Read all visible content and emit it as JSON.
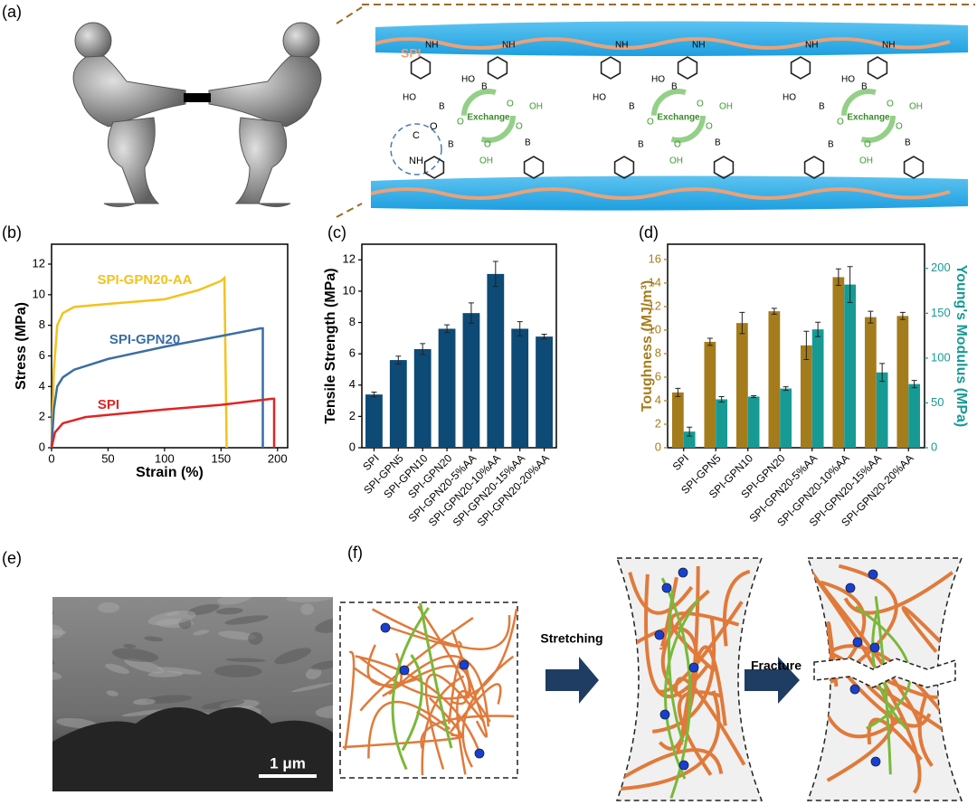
{
  "panels": [
    "(a)",
    "(b)",
    "(c)",
    "(d)",
    "(e)",
    "(f)"
  ],
  "molecule": {
    "polymer_label": "SPI",
    "exchange": "Exchange",
    "atoms": [
      "NH",
      "HO",
      "B",
      "O",
      "OH",
      "C"
    ]
  },
  "sem": {
    "scale_bar": "1 μm"
  },
  "diagram": {
    "steps": [
      "Stretching",
      "Fracture"
    ]
  },
  "chart_data": [
    {
      "type": "line",
      "x_label": "Strain (%)",
      "y_label": "Stress (MPa)",
      "xlim": [
        0,
        209
      ],
      "xticks": [
        0,
        50,
        100,
        150,
        200
      ],
      "ylim": [
        0,
        13.3
      ],
      "yticks": [
        0,
        2,
        4,
        6,
        8,
        10,
        12
      ],
      "series": [
        {
          "name": "SPI-GPN20-AA",
          "color": "#f5c21b",
          "x": [
            0,
            2,
            5,
            10,
            20,
            50,
            100,
            130,
            150,
            153,
            155
          ],
          "values": [
            0,
            5,
            8,
            8.8,
            9.2,
            9.4,
            9.7,
            10.3,
            10.9,
            11.1,
            0
          ]
        },
        {
          "name": "SPI-GPN20",
          "color": "#3a6ea5",
          "x": [
            0,
            2,
            5,
            10,
            20,
            50,
            100,
            150,
            185,
            187,
            187
          ],
          "values": [
            0,
            2.5,
            4,
            4.6,
            5.1,
            5.8,
            6.6,
            7.3,
            7.8,
            7.8,
            0
          ]
        },
        {
          "name": "SPI",
          "color": "#e02424",
          "x": [
            0,
            3,
            10,
            30,
            100,
            150,
            195,
            197,
            197
          ],
          "values": [
            0,
            1,
            1.6,
            2,
            2.5,
            2.8,
            3.2,
            3.2,
            0
          ]
        }
      ]
    },
    {
      "type": "bar",
      "y_label": "Tensile Strength (MPa)",
      "categories": [
        "SPI",
        "SPI-GPN5",
        "SPI-GPN10",
        "SPI-GPN20",
        "SPI-GPN20-5%AA",
        "SPI-GPN20-10%AA",
        "SPI-GPN20-15%AA",
        "SPI-GPN20-20%AA"
      ],
      "values": [
        3.4,
        5.6,
        6.3,
        7.6,
        8.6,
        11.1,
        7.6,
        7.1
      ],
      "errors": [
        0.15,
        0.25,
        0.35,
        0.25,
        0.65,
        0.8,
        0.45,
        0.15
      ],
      "color": "#0d4a75",
      "ylim": [
        0,
        13
      ],
      "yticks": [
        0,
        2,
        4,
        6,
        8,
        10,
        12
      ]
    },
    {
      "type": "bar",
      "y_label": "Toughness (MJ/m³)",
      "y2_label": "Young's Modulus (MPa)",
      "categories": [
        "SPI",
        "SPI-GPN5",
        "SPI-GPN10",
        "SPI-GPN20",
        "SPI-GPN20-5%AA",
        "SPI-GPN20-10%AA",
        "SPI-GPN20-15%AA",
        "SPI-GPN20-20%AA"
      ],
      "ylim": [
        0,
        17.3
      ],
      "yticks": [
        0,
        2,
        4,
        6,
        8,
        10,
        12,
        14,
        16
      ],
      "y2lim": [
        0,
        227
      ],
      "y2ticks": [
        0,
        50,
        100,
        150,
        200
      ],
      "series": [
        {
          "color": "#a57c1b",
          "values": [
            4.7,
            9.0,
            10.6,
            11.6,
            8.7,
            14.5,
            11.1,
            11.2
          ],
          "errors": [
            0.35,
            0.3,
            0.9,
            0.25,
            1.2,
            0.7,
            0.5,
            0.3
          ]
        },
        {
          "color": "#179a94",
          "axis": "y2",
          "values": [
            18,
            54,
            57,
            66,
            132,
            182,
            84,
            71
          ],
          "errors": [
            5,
            3,
            1,
            2,
            8,
            20,
            10,
            4
          ]
        }
      ]
    }
  ]
}
